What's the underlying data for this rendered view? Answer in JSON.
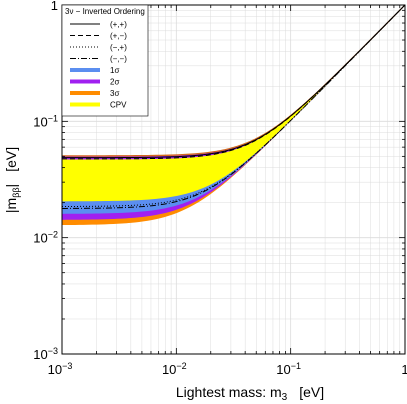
{
  "chart_data": {
    "type": "area",
    "title": "",
    "xlabel": "Lightest mass:    m",
    "xlabel_sub": "3",
    "xlabel_unit": "[eV]",
    "ylabel": "|m",
    "ylabel_sub": "ββ",
    "ylabel_tail": "|",
    "ylabel_unit": "[eV]",
    "x_scale": "log",
    "y_scale": "log",
    "xlim": [
      0.001,
      1
    ],
    "ylim": [
      0.001,
      1
    ],
    "grid": true,
    "legend_position": "top-left",
    "x_ticks": [
      {
        "value": 0.001,
        "base": "10",
        "exp": "−3"
      },
      {
        "value": 0.01,
        "base": "10",
        "exp": "−2"
      },
      {
        "value": 0.1,
        "base": "10",
        "exp": "−1"
      },
      {
        "value": 1,
        "base": "1",
        "exp": ""
      }
    ],
    "y_ticks": [
      {
        "value": 0.001,
        "base": "10",
        "exp": "−3"
      },
      {
        "value": 0.01,
        "base": "10",
        "exp": "−2"
      },
      {
        "value": 0.1,
        "base": "10",
        "exp": "−1"
      },
      {
        "value": 1,
        "base": "1",
        "exp": ""
      }
    ],
    "legend": {
      "title": "3ν − Inverted Ordering",
      "line_entries": [
        {
          "label": "(+,+)",
          "dash": "solid"
        },
        {
          "label": "(+,−)",
          "dash": "dashed"
        },
        {
          "label": "(−,+)",
          "dash": "dotted"
        },
        {
          "label": "(−,−)",
          "dash": "dashdot"
        }
      ],
      "band_entries": [
        {
          "label": "1σ",
          "color": "#5b8ef0"
        },
        {
          "label": "2σ",
          "color": "#a020f0"
        },
        {
          "label": "3σ",
          "color": "#ff8c00"
        },
        {
          "label": "CPV",
          "color": "#ffff00"
        }
      ]
    },
    "series": [
      {
        "name": "(+,+)",
        "mlow": 0.0487,
        "dash": "solid"
      },
      {
        "name": "(+,−)",
        "mlow": 0.0475,
        "dash": "dashed"
      },
      {
        "name": "(−,+)",
        "mlow": 0.0185,
        "dash": "dotted"
      },
      {
        "name": "(−,−)",
        "mlow": 0.0178,
        "dash": "dashdot"
      }
    ],
    "bands": [
      {
        "name": "3σ",
        "color": "#ff8c00",
        "lo": 0.0128,
        "hi": 0.0505
      },
      {
        "name": "2σ",
        "color": "#a020f0",
        "lo": 0.0142,
        "hi": 0.0497
      },
      {
        "name": "CPV",
        "color": "#ffff00",
        "lo": 0.02,
        "hi": 0.047
      },
      {
        "name": "1σ",
        "color": "#5b8ef0",
        "lo": 0.016,
        "hi": 0.0205
      }
    ],
    "outline_color": "#d2691e"
  }
}
